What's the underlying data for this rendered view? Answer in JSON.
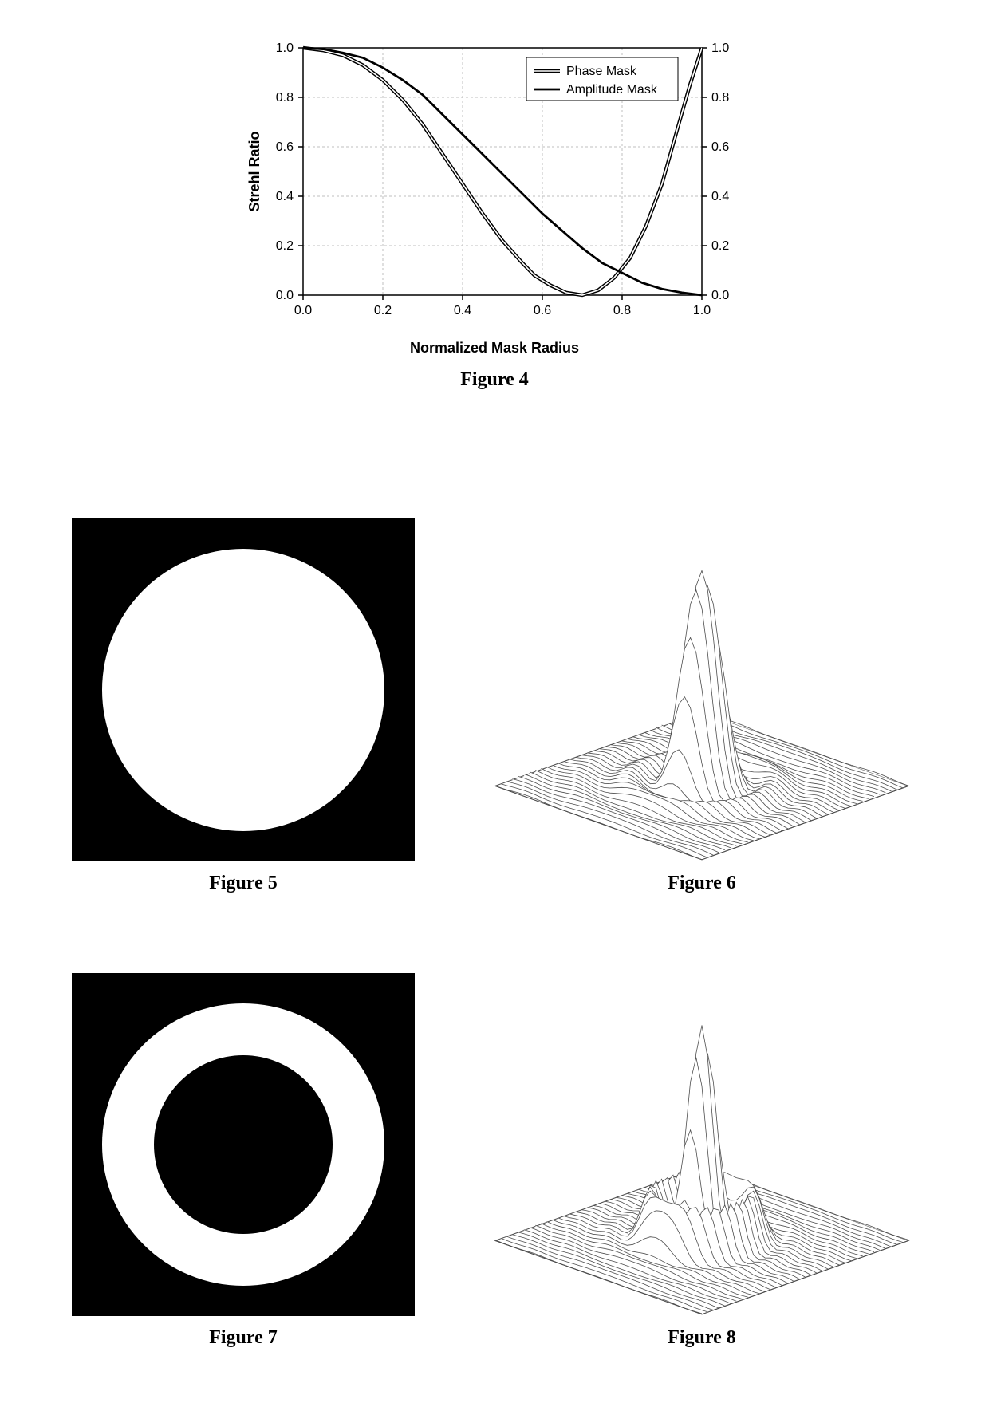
{
  "fig4": {
    "type": "line",
    "title": null,
    "xlabel": "Normalized Mask Radius",
    "ylabel": "Strehl Ratio",
    "xlim": [
      0.0,
      1.0
    ],
    "ylim": [
      0.0,
      1.0
    ],
    "xtick_step": 0.2,
    "ytick_step": 0.2,
    "xticks": [
      "0.0",
      "0.2",
      "0.4",
      "0.6",
      "0.8",
      "1.0"
    ],
    "yticks": [
      "0.0",
      "0.2",
      "0.4",
      "0.6",
      "0.8",
      "1.0"
    ],
    "grid_color": "#bfbfbf",
    "axis_color": "#000000",
    "background_color": "#ffffff",
    "series": [
      {
        "name": "Phase Mask",
        "color": "#000000",
        "style": "double",
        "line_width": 1.2,
        "points": [
          [
            0.0,
            1.0
          ],
          [
            0.05,
            0.99
          ],
          [
            0.1,
            0.97
          ],
          [
            0.15,
            0.93
          ],
          [
            0.2,
            0.87
          ],
          [
            0.25,
            0.79
          ],
          [
            0.3,
            0.69
          ],
          [
            0.35,
            0.57
          ],
          [
            0.4,
            0.45
          ],
          [
            0.45,
            0.33
          ],
          [
            0.5,
            0.22
          ],
          [
            0.55,
            0.13
          ],
          [
            0.58,
            0.08
          ],
          [
            0.62,
            0.04
          ],
          [
            0.66,
            0.01
          ],
          [
            0.7,
            0.0
          ],
          [
            0.74,
            0.02
          ],
          [
            0.78,
            0.07
          ],
          [
            0.82,
            0.15
          ],
          [
            0.86,
            0.28
          ],
          [
            0.9,
            0.45
          ],
          [
            0.94,
            0.68
          ],
          [
            0.97,
            0.85
          ],
          [
            1.0,
            1.0
          ]
        ]
      },
      {
        "name": "Amplitude Mask",
        "color": "#000000",
        "style": "solid",
        "line_width": 2.8,
        "points": [
          [
            0.0,
            1.0
          ],
          [
            0.05,
            0.995
          ],
          [
            0.1,
            0.98
          ],
          [
            0.15,
            0.96
          ],
          [
            0.2,
            0.92
          ],
          [
            0.25,
            0.87
          ],
          [
            0.3,
            0.81
          ],
          [
            0.35,
            0.73
          ],
          [
            0.4,
            0.65
          ],
          [
            0.45,
            0.57
          ],
          [
            0.5,
            0.49
          ],
          [
            0.55,
            0.41
          ],
          [
            0.6,
            0.33
          ],
          [
            0.65,
            0.26
          ],
          [
            0.7,
            0.19
          ],
          [
            0.75,
            0.13
          ],
          [
            0.8,
            0.09
          ],
          [
            0.85,
            0.05
          ],
          [
            0.9,
            0.025
          ],
          [
            0.95,
            0.01
          ],
          [
            1.0,
            0.0
          ]
        ]
      }
    ],
    "legend": {
      "items": [
        "Phase Mask",
        "Amplitude Mask"
      ],
      "position": "top-right",
      "border_color": "#000000"
    },
    "caption": "Figure 4",
    "tick_fontsize": 16,
    "label_fontsize": 18,
    "legend_fontsize": 16
  },
  "fig5": {
    "type": "mask",
    "shape": "filled-circle",
    "background_color": "#000000",
    "fill_color": "#ffffff",
    "box_size": 430,
    "circle_radius_ratio": 0.82,
    "caption": "Figure 5"
  },
  "fig6": {
    "type": "surface3d",
    "description": "Airy pattern PSF — tall central peak with faint concentric rings on a flat plane",
    "stroke_color": "#4d4d4d",
    "fill_color": "#ffffff",
    "background_color": "#ffffff",
    "peak_height_ratio": 1.0,
    "ring_count": 3,
    "caption": "Figure 6"
  },
  "fig7": {
    "type": "mask",
    "shape": "annulus",
    "background_color": "#000000",
    "fill_color": "#ffffff",
    "box_size": 430,
    "outer_radius_ratio": 0.82,
    "inner_radius_ratio": 0.52,
    "caption": "Figure 7"
  },
  "fig8": {
    "type": "surface3d",
    "description": "Annular-aperture PSF — narrower central spike with pronounced first sidelobe ring",
    "stroke_color": "#4d4d4d",
    "fill_color": "#ffffff",
    "background_color": "#ffffff",
    "peak_height_ratio": 1.0,
    "sidelobe_height_ratio": 0.22,
    "caption": "Figure 8"
  }
}
